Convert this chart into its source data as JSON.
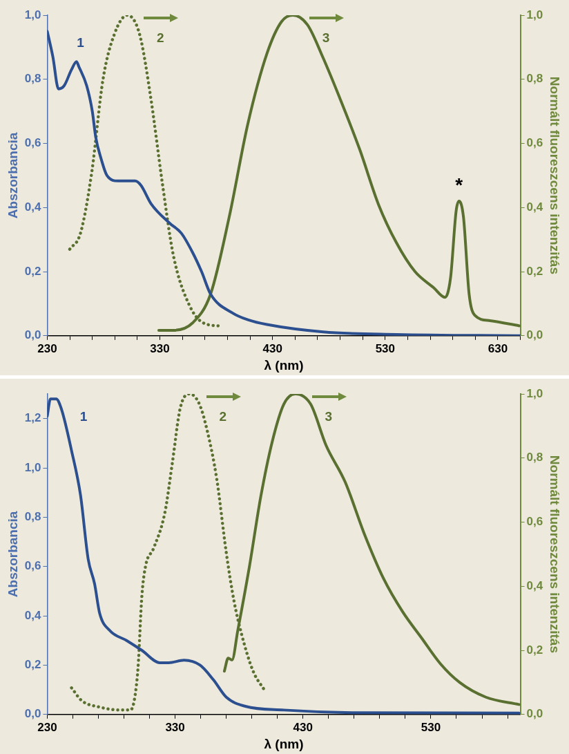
{
  "chart_data": [
    {
      "type": "line",
      "xlabel": "λ (nm)",
      "ylabel": "Abszorbancia",
      "y2label": "Normált fluoreszcens intenzitás",
      "marker": "none",
      "legend": false,
      "grid": false,
      "xlim": [
        230,
        650
      ],
      "xticks": [
        230,
        {
          "value": 250,
          "label": null
        },
        {
          "value": 270,
          "label": null
        },
        {
          "value": 290,
          "label": null
        },
        {
          "value": 310,
          "label": null
        },
        330,
        {
          "value": 350,
          "label": null
        },
        {
          "value": 370,
          "label": null
        },
        {
          "value": 390,
          "label": null
        },
        {
          "value": 410,
          "label": null
        },
        430,
        {
          "value": 450,
          "label": null
        },
        {
          "value": 470,
          "label": null
        },
        {
          "value": 490,
          "label": null
        },
        {
          "value": 510,
          "label": null
        },
        530,
        {
          "value": 550,
          "label": null
        },
        {
          "value": 570,
          "label": null
        },
        {
          "value": 590,
          "label": null
        },
        {
          "value": 610,
          "label": null
        },
        630,
        {
          "value": 650,
          "label": null
        }
      ],
      "ylim": [
        0,
        1.0
      ],
      "yticks": [
        {
          "value": 0,
          "label": "0,0"
        },
        {
          "value": 0.2,
          "label": "0,2"
        },
        {
          "value": 0.4,
          "label": "0,4"
        },
        {
          "value": 0.6,
          "label": "0,6"
        },
        {
          "value": 0.8,
          "label": "0,8"
        },
        {
          "value": 1.0,
          "label": "1,0"
        }
      ],
      "y2lim": [
        0,
        1.0
      ],
      "y2ticks": [
        {
          "value": 0,
          "label": "0,0"
        },
        {
          "value": 0.2,
          "label": "0,2"
        },
        {
          "value": 0.4,
          "label": "0,4"
        },
        {
          "value": 0.6,
          "label": "0,6"
        },
        {
          "value": 0.8,
          "label": "0,8"
        },
        {
          "value": 1.0,
          "label": "1,0"
        }
      ],
      "series": [
        {
          "color": "#2b4f8f",
          "line_style": "solid",
          "x": [
            230,
            235,
            240,
            245,
            251.5,
            256,
            258,
            265,
            270,
            273,
            278,
            283,
            293,
            308,
            313,
            322.5,
            339,
            349,
            359,
            367,
            375,
            395,
            408,
            425,
            475,
            540,
            650
          ],
          "values": [
            0.95,
            0.87,
            0.77,
            0.78,
            0.83,
            0.855,
            0.84,
            0.78,
            0.7,
            0.62,
            0.55,
            0.5,
            0.483,
            0.483,
            0.47,
            0.41,
            0.35,
            0.32,
            0.26,
            0.2,
            0.13,
            0.07,
            0.05,
            0.035,
            0.012,
            0.004,
            0.0
          ]
        },
        {
          "color": "#5a7030",
          "axis": "y2",
          "line_style": "dotted",
          "x": [
            250,
            259.5,
            269.5,
            279.5,
            289.5,
            301,
            312,
            322,
            332,
            342,
            355.5,
            368.5,
            385
          ],
          "values": [
            0.27,
            0.32,
            0.51,
            0.8,
            0.94,
            1.0,
            0.94,
            0.74,
            0.48,
            0.25,
            0.1,
            0.04,
            0.03
          ]
        },
        {
          "color": "#5a7030",
          "axis": "y2",
          "line_style": "solid",
          "x": [
            329,
            342,
            359,
            375,
            391.5,
            408,
            425,
            438,
            448,
            461,
            474.5,
            491,
            507.5,
            524,
            540,
            556.5,
            573,
            583,
            588,
            593,
            595.5,
            599.5,
            604.5,
            609.5,
            623,
            649
          ],
          "values": [
            0.017,
            0.017,
            0.04,
            0.13,
            0.37,
            0.66,
            0.88,
            0.98,
            1.0,
            0.97,
            0.87,
            0.73,
            0.58,
            0.41,
            0.29,
            0.2,
            0.15,
            0.12,
            0.18,
            0.39,
            0.42,
            0.37,
            0.13,
            0.064,
            0.047,
            0.031
          ]
        }
      ],
      "annotations": [
        "1",
        "2",
        "3",
        {
          "text": "*",
          "x": 595.5,
          "y": 0.42
        }
      ]
    },
    {
      "type": "line",
      "xlabel": "λ (nm)",
      "ylabel": "Abszorbancia",
      "y2label": "Normált fluoreszcens intenzitás",
      "marker": "none",
      "legend": false,
      "grid": false,
      "xlim": [
        230,
        600
      ],
      "xticks": [
        230,
        {
          "value": 250,
          "label": null
        },
        {
          "value": 270,
          "label": null
        },
        {
          "value": 290,
          "label": null
        },
        {
          "value": 310,
          "label": null
        },
        330,
        {
          "value": 350,
          "label": null
        },
        {
          "value": 370,
          "label": null
        },
        {
          "value": 390,
          "label": null
        },
        {
          "value": 410,
          "label": null
        },
        430,
        {
          "value": 450,
          "label": null
        },
        {
          "value": 470,
          "label": null
        },
        {
          "value": 490,
          "label": null
        },
        {
          "value": 510,
          "label": null
        },
        530,
        {
          "value": 550,
          "label": null
        },
        {
          "value": 570,
          "label": null
        },
        {
          "value": 590,
          "label": null
        }
      ],
      "ylim": [
        0,
        1.3
      ],
      "yticks": [
        {
          "value": 0,
          "label": "0,0"
        },
        {
          "value": 0.2,
          "label": "0,2"
        },
        {
          "value": 0.4,
          "label": "0,4"
        },
        {
          "value": 0.6,
          "label": "0,6"
        },
        {
          "value": 0.8,
          "label": "0,8"
        },
        {
          "value": 1.0,
          "label": "1,0"
        },
        {
          "value": 1.2,
          "label": "1,2"
        }
      ],
      "y2lim": [
        0,
        1.0
      ],
      "y2ticks": [
        {
          "value": 0,
          "label": "0,0"
        },
        {
          "value": 0.2,
          "label": "0,2"
        },
        {
          "value": 0.4,
          "label": "0,4"
        },
        {
          "value": 0.6,
          "label": "0,6"
        },
        {
          "value": 0.8,
          "label": "0,8"
        },
        {
          "value": 1.0,
          "label": "1,0"
        }
      ],
      "series": [
        {
          "color": "#2b4f8f",
          "line_style": "solid",
          "x": [
            230,
            232.5,
            237,
            241,
            249,
            256,
            262,
            267,
            271,
            279,
            292,
            304,
            318,
            325,
            337,
            349.5,
            360,
            370,
            385,
            415,
            475,
            599
          ],
          "values": [
            1.21,
            1.28,
            1.28,
            1.24,
            1.07,
            0.89,
            0.63,
            0.53,
            0.41,
            0.34,
            0.3,
            0.26,
            0.21,
            0.21,
            0.22,
            0.2,
            0.14,
            0.07,
            0.033,
            0.018,
            0.007,
            0.006
          ]
        },
        {
          "color": "#5a7030",
          "axis": "y2",
          "line_style": "dotted",
          "x": [
            249,
            257,
            271,
            286,
            295,
            298,
            301,
            304,
            307,
            313,
            322,
            328,
            334,
            341.5,
            349,
            355,
            362.5,
            370,
            376,
            382,
            391,
            400
          ],
          "values": [
            0.083,
            0.043,
            0.023,
            0.014,
            0.014,
            0.043,
            0.147,
            0.37,
            0.465,
            0.517,
            0.63,
            0.79,
            0.956,
            1.0,
            0.968,
            0.887,
            0.736,
            0.505,
            0.355,
            0.25,
            0.135,
            0.075
          ]
        },
        {
          "color": "#5a7030",
          "axis": "y2",
          "line_style": "solid",
          "x": [
            368.5,
            371.5,
            374.5,
            379,
            388,
            397,
            406,
            415,
            424,
            436,
            448,
            463,
            478,
            493,
            508,
            522.5,
            537.5,
            552.5,
            573,
            599
          ],
          "values": [
            0.135,
            0.176,
            0.17,
            0.262,
            0.459,
            0.68,
            0.852,
            0.968,
            1.0,
            0.968,
            0.84,
            0.725,
            0.563,
            0.424,
            0.32,
            0.24,
            0.158,
            0.1,
            0.054,
            0.031
          ]
        }
      ],
      "annotations": [
        "1",
        "2",
        "3"
      ]
    }
  ]
}
